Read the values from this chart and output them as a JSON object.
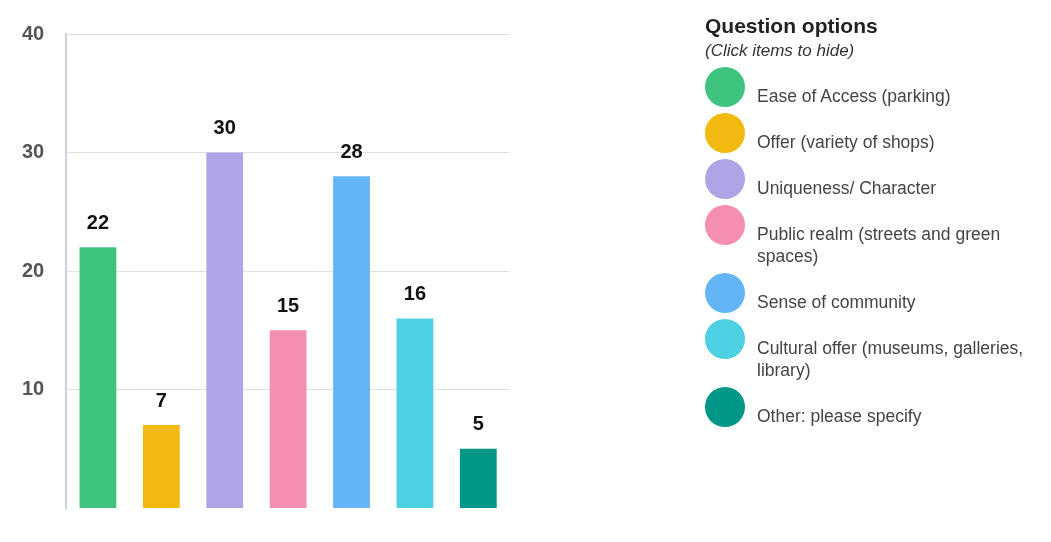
{
  "chart_data": {
    "type": "bar",
    "legend_title": "Question options",
    "annotations": [
      "(Click items to hide)"
    ],
    "categories": [
      null
    ],
    "series": [
      {
        "name": "Ease of Access (parking)",
        "color": "#3ec47e",
        "values": [
          22
        ]
      },
      {
        "name": "Offer (variety of shops)",
        "color": "#f2b90f",
        "values": [
          7
        ]
      },
      {
        "name": "Uniqueness/ Character",
        "color": "#ada5e6",
        "values": [
          30
        ]
      },
      {
        "name": "Public realm (streets and green spaces)",
        "color": "#f48fb1",
        "values": [
          15
        ]
      },
      {
        "name": "Sense of community",
        "color": "#64b5f6",
        "values": [
          28
        ]
      },
      {
        "name": "Cultural offer (museums, galleries, library)",
        "color": "#4dd0e1",
        "values": [
          16
        ]
      },
      {
        "name": "Other: please specify",
        "color": "#009688",
        "values": [
          5
        ]
      }
    ],
    "ylim": [
      0,
      40
    ],
    "yticks": [
      10,
      20,
      30,
      40
    ],
    "grid": "y",
    "legend": "right",
    "data_labels": true
  }
}
